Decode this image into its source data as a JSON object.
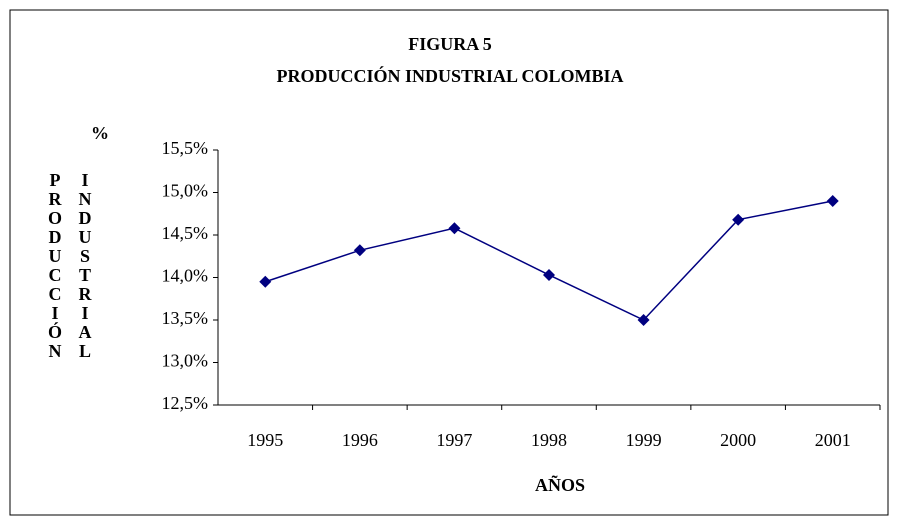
{
  "chart_data": {
    "type": "line",
    "title": "FIGURA 5",
    "subtitle": "PRODUCCIÓN INDUSTRIAL COLOMBIA",
    "xlabel": "AÑOS",
    "ylabel_unit": "%",
    "ylabel": [
      "PRODUCCIÓN",
      "INDUSTRIAL"
    ],
    "categories": [
      "1995",
      "1996",
      "1997",
      "1998",
      "1999",
      "2000",
      "2001"
    ],
    "values": [
      13.95,
      14.32,
      14.58,
      14.03,
      13.5,
      14.68,
      14.9
    ],
    "color": "#000080",
    "ylim": [
      12.5,
      15.5
    ],
    "yticks": [
      {
        "value": 12.5,
        "label": "12,5%"
      },
      {
        "value": 13,
        "label": "13,0%"
      },
      {
        "value": 13.5,
        "label": "13,5%"
      },
      {
        "value": 14,
        "label": "14,0%"
      },
      {
        "value": 14.5,
        "label": "14,5%"
      },
      {
        "value": 15,
        "label": "15,0%"
      },
      {
        "value": 15.5,
        "label": "15,5%"
      }
    ],
    "grid": false
  }
}
